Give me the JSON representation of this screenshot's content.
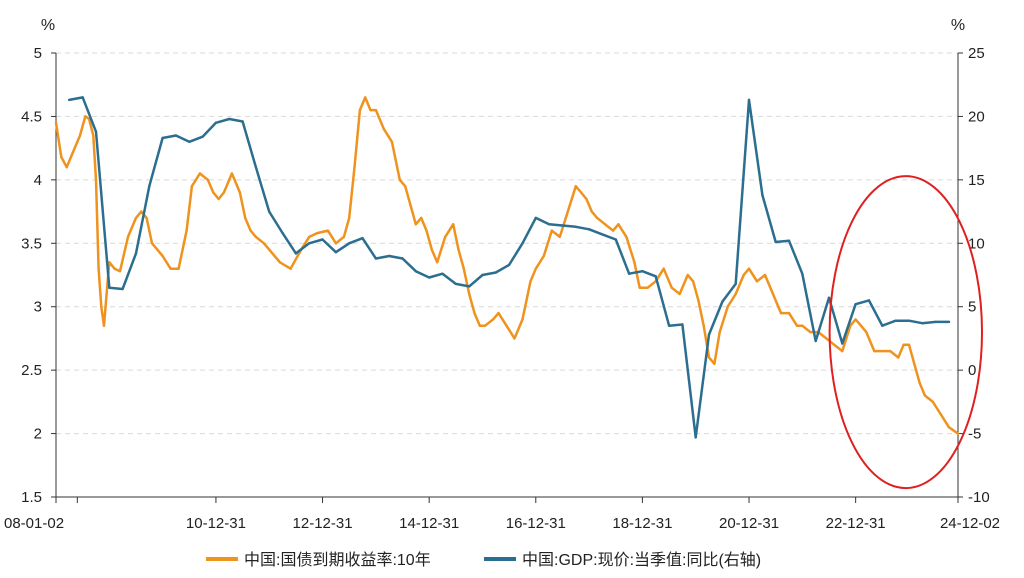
{
  "chart_data": {
    "type": "line",
    "title": "",
    "left_unit": "%",
    "right_unit": "%",
    "x_tick_labels": [
      "08-01-02",
      "10-12-31",
      "12-12-31",
      "14-12-31",
      "16-12-31",
      "18-12-31",
      "20-12-31",
      "22-12-31",
      "24-12-02"
    ],
    "x_tick_years": [
      2008.0,
      2008.4,
      2011.0,
      2013.0,
      2015.0,
      2017.0,
      2019.0,
      2021.0,
      2023.0,
      2024.92
    ],
    "x_label_years": [
      2008.0,
      2011.0,
      2013.0,
      2015.0,
      2017.0,
      2019.0,
      2021.0,
      2023.0,
      2024.92
    ],
    "x_range": [
      2008.0,
      2024.92
    ],
    "y_left": {
      "range": [
        1.5,
        5
      ],
      "ticks": [
        1.5,
        2,
        2.5,
        3,
        3.5,
        4,
        4.5,
        5
      ],
      "labels": [
        "1.5",
        "2",
        "2.5",
        "3",
        "3.5",
        "4",
        "4.5",
        "5"
      ]
    },
    "y_right": {
      "range": [
        -10,
        25
      ],
      "ticks": [
        -10,
        -5,
        0,
        5,
        10,
        15,
        20,
        25
      ],
      "labels": [
        "-10",
        "-5",
        "0",
        "5",
        "10",
        "15",
        "20",
        "25"
      ]
    },
    "grid": true,
    "legend_position": "bottom",
    "series": [
      {
        "name": "中国:国债到期收益率:10年",
        "axis": "left",
        "color": "#f0921e",
        "x": [
          2008.0,
          2008.1,
          2008.2,
          2008.3,
          2008.45,
          2008.55,
          2008.62,
          2008.7,
          2008.75,
          2008.8,
          2008.85,
          2008.9,
          2008.95,
          2009.0,
          2009.1,
          2009.2,
          2009.35,
          2009.5,
          2009.6,
          2009.7,
          2009.75,
          2009.8,
          2009.9,
          2010.0,
          2010.15,
          2010.3,
          2010.45,
          2010.55,
          2010.7,
          2010.85,
          2010.95,
          2011.05,
          2011.15,
          2011.3,
          2011.45,
          2011.55,
          2011.65,
          2011.75,
          2011.9,
          2012.0,
          2012.2,
          2012.4,
          2012.6,
          2012.75,
          2012.9,
          2013.1,
          2013.25,
          2013.4,
          2013.5,
          2013.6,
          2013.7,
          2013.8,
          2013.9,
          2014.0,
          2014.15,
          2014.3,
          2014.45,
          2014.55,
          2014.65,
          2014.75,
          2014.85,
          2014.95,
          2015.05,
          2015.15,
          2015.3,
          2015.45,
          2015.55,
          2015.65,
          2015.75,
          2015.85,
          2015.95,
          2016.05,
          2016.2,
          2016.3,
          2016.45,
          2016.6,
          2016.75,
          2016.9,
          2017.0,
          2017.15,
          2017.3,
          2017.45,
          2017.6,
          2017.75,
          2017.85,
          2017.95,
          2018.05,
          2018.15,
          2018.3,
          2018.45,
          2018.55,
          2018.7,
          2018.85,
          2018.95,
          2019.1,
          2019.25,
          2019.4,
          2019.55,
          2019.7,
          2019.85,
          2019.95,
          2020.05,
          2020.15,
          2020.25,
          2020.35,
          2020.45,
          2020.6,
          2020.75,
          2020.9,
          2021.0,
          2021.15,
          2021.3,
          2021.45,
          2021.6,
          2021.75,
          2021.9,
          2022.0,
          2022.15,
          2022.3,
          2022.45,
          2022.6,
          2022.75,
          2022.9,
          2023.0,
          2023.1,
          2023.2,
          2023.35,
          2023.5,
          2023.65,
          2023.8,
          2023.9,
          2024.0,
          2024.1,
          2024.2,
          2024.3,
          2024.45,
          2024.6,
          2024.75,
          2024.92
        ],
        "values": [
          4.45,
          4.18,
          4.1,
          4.2,
          4.35,
          4.5,
          4.48,
          4.35,
          4.0,
          3.3,
          3.0,
          2.85,
          3.1,
          3.35,
          3.3,
          3.28,
          3.55,
          3.7,
          3.75,
          3.7,
          3.6,
          3.5,
          3.45,
          3.4,
          3.3,
          3.3,
          3.6,
          3.95,
          4.05,
          4.0,
          3.9,
          3.85,
          3.9,
          4.05,
          3.9,
          3.7,
          3.6,
          3.55,
          3.5,
          3.45,
          3.35,
          3.3,
          3.45,
          3.55,
          3.58,
          3.6,
          3.5,
          3.55,
          3.7,
          4.1,
          4.55,
          4.65,
          4.55,
          4.55,
          4.4,
          4.3,
          4.0,
          3.95,
          3.8,
          3.65,
          3.7,
          3.6,
          3.45,
          3.35,
          3.55,
          3.65,
          3.45,
          3.3,
          3.1,
          2.95,
          2.85,
          2.85,
          2.9,
          2.95,
          2.85,
          2.75,
          2.9,
          3.2,
          3.3,
          3.4,
          3.6,
          3.55,
          3.75,
          3.95,
          3.9,
          3.85,
          3.75,
          3.7,
          3.65,
          3.6,
          3.65,
          3.55,
          3.35,
          3.15,
          3.15,
          3.2,
          3.3,
          3.15,
          3.1,
          3.25,
          3.2,
          3.05,
          2.85,
          2.6,
          2.55,
          2.8,
          3.0,
          3.1,
          3.25,
          3.3,
          3.2,
          3.25,
          3.1,
          2.95,
          2.95,
          2.85,
          2.85,
          2.8,
          2.8,
          2.75,
          2.7,
          2.65,
          2.85,
          2.9,
          2.85,
          2.8,
          2.65,
          2.65,
          2.65,
          2.6,
          2.7,
          2.7,
          2.55,
          2.4,
          2.3,
          2.25,
          2.15,
          2.05,
          2.0
        ]
      },
      {
        "name": "中国:GDP:现价:当季值:同比(右轴)",
        "axis": "right",
        "color": "#2c6e8f",
        "x": [
          2008.25,
          2008.5,
          2008.75,
          2009.0,
          2009.25,
          2009.5,
          2009.75,
          2010.0,
          2010.25,
          2010.5,
          2010.75,
          2011.0,
          2011.25,
          2011.5,
          2011.75,
          2012.0,
          2012.25,
          2012.5,
          2012.75,
          2013.0,
          2013.25,
          2013.5,
          2013.75,
          2014.0,
          2014.25,
          2014.5,
          2014.75,
          2015.0,
          2015.25,
          2015.5,
          2015.75,
          2016.0,
          2016.25,
          2016.5,
          2016.75,
          2017.0,
          2017.25,
          2017.5,
          2017.75,
          2018.0,
          2018.25,
          2018.5,
          2018.75,
          2019.0,
          2019.25,
          2019.5,
          2019.75,
          2020.0,
          2020.25,
          2020.5,
          2020.75,
          2021.0,
          2021.25,
          2021.5,
          2021.75,
          2022.0,
          2022.25,
          2022.5,
          2022.75,
          2023.0,
          2023.25,
          2023.5,
          2023.75,
          2024.0,
          2024.25,
          2024.5,
          2024.75
        ],
        "values": [
          21.3,
          21.5,
          18.8,
          6.5,
          6.4,
          9.2,
          14.5,
          18.3,
          18.5,
          18.0,
          18.4,
          19.5,
          19.8,
          19.6,
          16.0,
          12.5,
          10.8,
          9.2,
          10.0,
          10.3,
          9.3,
          10.0,
          10.4,
          8.8,
          9.0,
          8.8,
          7.8,
          7.3,
          7.6,
          6.8,
          6.6,
          7.5,
          7.7,
          8.3,
          10.0,
          12.0,
          11.5,
          11.4,
          11.3,
          11.1,
          10.7,
          10.3,
          7.6,
          7.8,
          7.4,
          3.5,
          3.6,
          -5.3,
          2.8,
          5.4,
          6.8,
          21.3,
          13.8,
          10.1,
          10.2,
          7.6,
          2.3,
          5.7,
          2.1,
          5.2,
          5.5,
          3.5,
          3.9,
          3.9,
          3.7,
          3.8,
          3.8
        ]
      }
    ],
    "annotation": {
      "shape": "red-ellipse",
      "color": "#e02020",
      "around_years": [
        2023.0,
        2024.92
      ]
    }
  }
}
